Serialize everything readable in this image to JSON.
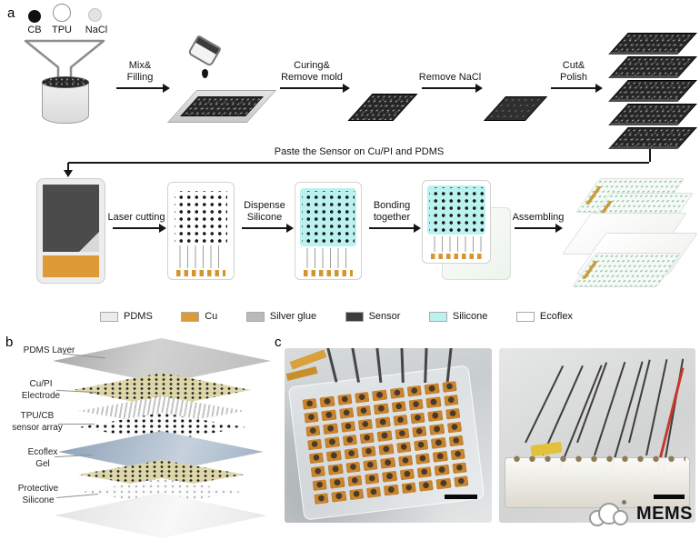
{
  "panels": {
    "a": "a",
    "b": "b",
    "c": "c"
  },
  "materials": {
    "cb": "CB",
    "tpu": "TPU",
    "nacl": "NaCl"
  },
  "steps": {
    "mix": "Mix&\nFilling",
    "curing": "Curing&\nRemove mold",
    "remove_nacl": "Remove NaCl",
    "cut": "Cut&\nPolish",
    "paste": "Paste the Sensor on Cu/PI and PDMS",
    "laser": "Laser cutting",
    "dispense": "Dispense\nSilicone",
    "bonding": "Bonding\ntogether",
    "assembling": "Assembling"
  },
  "legend": [
    {
      "label": "PDMS",
      "color": "#ececec"
    },
    {
      "label": "Cu",
      "color": "#dd9a35"
    },
    {
      "label": "Silver glue",
      "color": "#b9b9b9"
    },
    {
      "label": "Sensor",
      "color": "#3d3d3d"
    },
    {
      "label": "Silicone",
      "color": "#b9f2ee"
    },
    {
      "label": "Ecoflex",
      "color": "#ffffff"
    }
  ],
  "layers": [
    {
      "label": "PDMS Layer"
    },
    {
      "label": "Cu/PI\nElectrode"
    },
    {
      "label": "TPU/CB\nsensor array"
    },
    {
      "label": "Ecoflex\nGel"
    },
    {
      "label": "Protective\nSilicone"
    }
  ],
  "logo": {
    "text": "MEMS"
  }
}
